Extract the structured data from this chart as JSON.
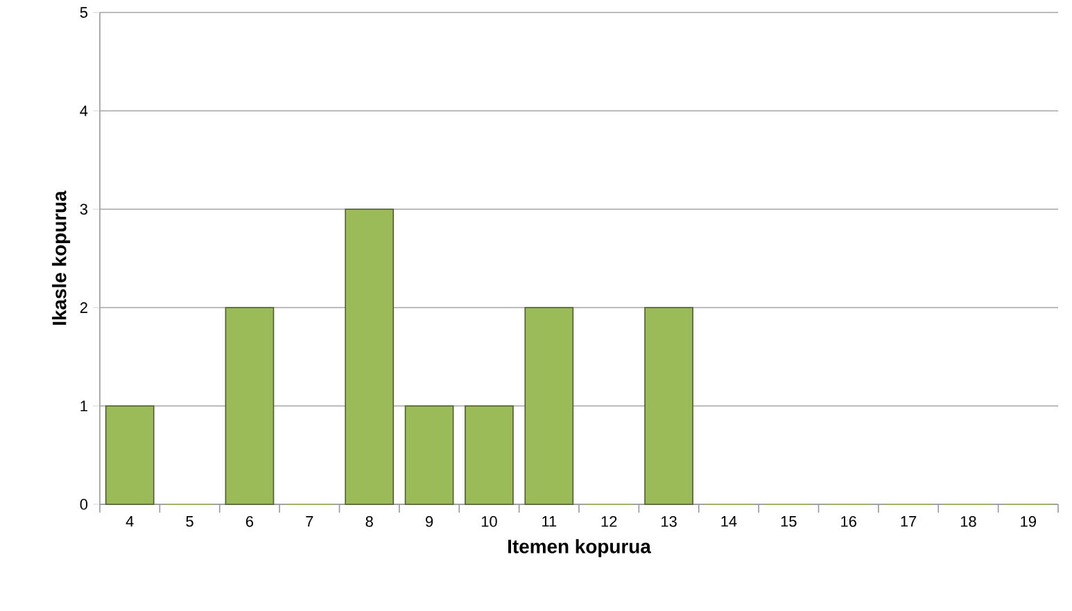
{
  "chart_data": {
    "type": "bar",
    "xlabel": "Itemen kopurua",
    "ylabel": "Ikasle kopurua",
    "categories": [
      "4",
      "5",
      "6",
      "7",
      "8",
      "9",
      "10",
      "11",
      "12",
      "13",
      "14",
      "15",
      "16",
      "17",
      "18",
      "19"
    ],
    "values": [
      1,
      0,
      2,
      0,
      3,
      1,
      1,
      2,
      0,
      2,
      0,
      0,
      0,
      0,
      0,
      0
    ],
    "color": "#9bbb59",
    "ylim": [
      0,
      5
    ],
    "yticks": [
      0,
      1,
      2,
      3,
      4,
      5
    ],
    "grid": "y"
  }
}
